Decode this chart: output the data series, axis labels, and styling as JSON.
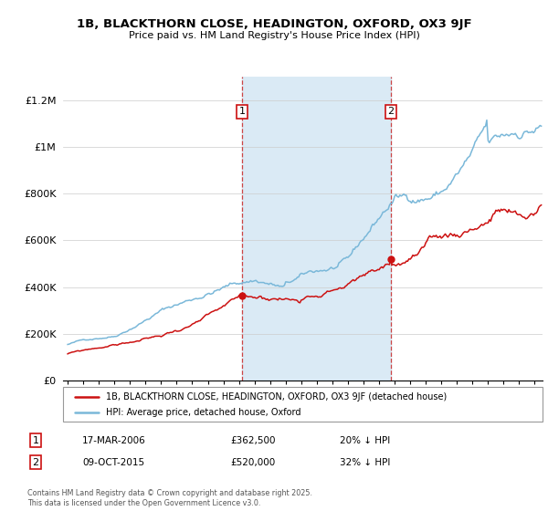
{
  "title": "1B, BLACKTHORN CLOSE, HEADINGTON, OXFORD, OX3 9JF",
  "subtitle": "Price paid vs. HM Land Registry's House Price Index (HPI)",
  "hpi_label": "HPI: Average price, detached house, Oxford",
  "property_label": "1B, BLACKTHORN CLOSE, HEADINGTON, OXFORD, OX3 9JF (detached house)",
  "footnote": "Contains HM Land Registry data © Crown copyright and database right 2025.\nThis data is licensed under the Open Government Licence v3.0.",
  "sale1": {
    "date": "17-MAR-2006",
    "price": 362500,
    "note": "20% ↓ HPI"
  },
  "sale2": {
    "date": "09-OCT-2015",
    "price": 520000,
    "note": "32% ↓ HPI"
  },
  "sale1_x": 2006.21,
  "sale2_x": 2015.77,
  "hpi_color": "#7ab8d9",
  "property_color": "#cc1111",
  "dashed_color": "#cc4444",
  "shaded_color": "#daeaf5",
  "background_color": "#ffffff",
  "ylim": [
    0,
    1300000
  ],
  "xlim_start": 1994.7,
  "xlim_end": 2025.5,
  "yticks": [
    0,
    200000,
    400000,
    600000,
    800000,
    1000000,
    1200000
  ],
  "ytick_labels": [
    "£0",
    "£200K",
    "£400K",
    "£600K",
    "£800K",
    "£1M",
    "£1.2M"
  ],
  "badge_color": "#cc1111"
}
